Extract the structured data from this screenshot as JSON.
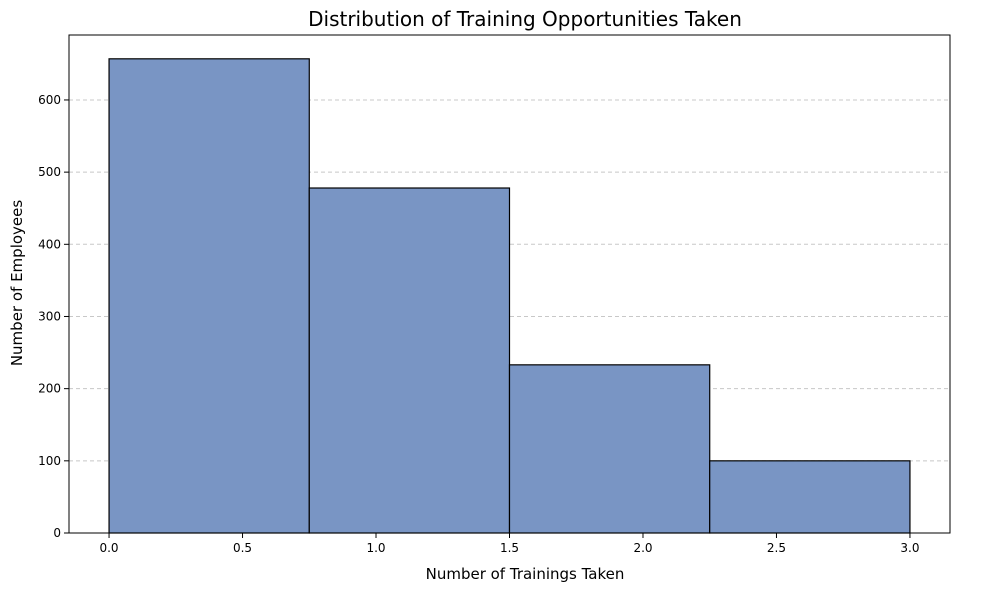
{
  "chart_data": {
    "type": "bar",
    "title": "Distribution of Training Opportunities Taken",
    "xlabel": "Number of Trainings Taken",
    "ylabel": "Number of Employees",
    "bins": [
      {
        "x0": 0.0,
        "x1": 0.75,
        "value": 657
      },
      {
        "x0": 0.75,
        "x1": 1.5,
        "value": 478
      },
      {
        "x0": 1.5,
        "x1": 2.25,
        "value": 233
      },
      {
        "x0": 2.25,
        "x1": 3.0,
        "value": 100
      }
    ],
    "xlim": [
      -0.15,
      3.15
    ],
    "ylim": [
      0,
      690
    ],
    "xticks": [
      0.0,
      0.5,
      1.0,
      1.5,
      2.0,
      2.5,
      3.0
    ],
    "xtick_labels": [
      "0.0",
      "0.5",
      "1.0",
      "1.5",
      "2.0",
      "2.5",
      "3.0"
    ],
    "yticks": [
      0,
      100,
      200,
      300,
      400,
      500,
      600
    ],
    "ytick_labels": [
      "0",
      "100",
      "200",
      "300",
      "400",
      "500",
      "600"
    ],
    "grid": "y-dashed",
    "colors": {
      "bar_fill": "#7995c4",
      "bar_edge": "#000000",
      "grid": "#c8c8c8"
    }
  }
}
